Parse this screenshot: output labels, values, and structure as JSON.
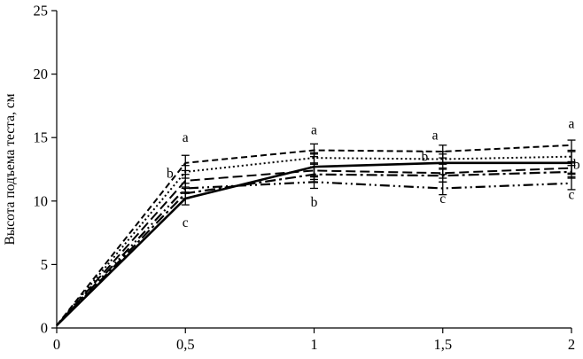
{
  "chart_data": {
    "type": "line",
    "ylabel": "Высота подъема теста, см",
    "xlim": [
      0,
      2
    ],
    "ylim": [
      0,
      25
    ],
    "yticks": [
      0,
      5,
      10,
      15,
      20,
      25
    ],
    "ytick_labels": [
      "0",
      "5",
      "10",
      "15",
      "20",
      "25"
    ],
    "xticks": [
      0,
      0.5,
      1,
      1.5,
      2
    ],
    "xtick_labels": [
      "0",
      "0,5",
      "1",
      "1,5",
      "2"
    ],
    "x": [
      0,
      0.5,
      1,
      1.5,
      2
    ],
    "grid": false,
    "legend": "none",
    "line_color": "#000000",
    "series": [
      {
        "name": "short-dash",
        "dash": "7 4",
        "width": 2,
        "values": [
          0.2,
          13.0,
          14.0,
          13.9,
          14.4
        ],
        "errors": [
          0,
          0.6,
          0.5,
          0.5,
          0.4
        ]
      },
      {
        "name": "dotted",
        "dash": "2 3",
        "width": 2,
        "values": [
          0.2,
          12.3,
          13.4,
          13.3,
          13.5
        ],
        "errors": [
          0,
          0.5,
          0.4,
          0.4,
          0.4
        ]
      },
      {
        "name": "dash",
        "dash": "11 5",
        "width": 2,
        "values": [
          0.2,
          11.6,
          12.4,
          12.2,
          12.6
        ],
        "errors": [
          0,
          0.5,
          0.5,
          0.4,
          0.4
        ]
      },
      {
        "name": "solid",
        "dash": "",
        "width": 2.6,
        "values": [
          0.2,
          10.2,
          12.7,
          13.0,
          13.0
        ],
        "errors": [
          0,
          0.5,
          1.0,
          0.9,
          0.9
        ]
      },
      {
        "name": "dash-dot",
        "dash": "12 4 3 4",
        "width": 2.2,
        "values": [
          0.2,
          10.6,
          12.1,
          12.0,
          12.3
        ],
        "errors": [
          0,
          0.4,
          0.6,
          0.5,
          0.5
        ]
      },
      {
        "name": "dash-dot-dot",
        "dash": "11 4 2 4 2 4",
        "width": 2.2,
        "values": [
          0.2,
          11.0,
          11.5,
          11.0,
          11.4
        ],
        "errors": [
          0,
          0.4,
          0.5,
          0.5,
          0.5
        ]
      }
    ],
    "annotations": [
      {
        "x": 0.5,
        "y": 15.0,
        "text": "a"
      },
      {
        "x": 0.44,
        "y": 12.2,
        "text": "b"
      },
      {
        "x": 0.5,
        "y": 8.3,
        "text": "c"
      },
      {
        "x": 1.0,
        "y": 15.6,
        "text": "a"
      },
      {
        "x": 1.0,
        "y": 9.9,
        "text": "b"
      },
      {
        "x": 1.47,
        "y": 15.2,
        "text": "a"
      },
      {
        "x": 1.43,
        "y": 13.5,
        "text": "b"
      },
      {
        "x": 1.5,
        "y": 10.2,
        "text": "c"
      },
      {
        "x": 2.0,
        "y": 16.1,
        "text": "a"
      },
      {
        "x": 2.02,
        "y": 12.9,
        "text": "b"
      },
      {
        "x": 2.0,
        "y": 10.5,
        "text": "c"
      }
    ]
  }
}
